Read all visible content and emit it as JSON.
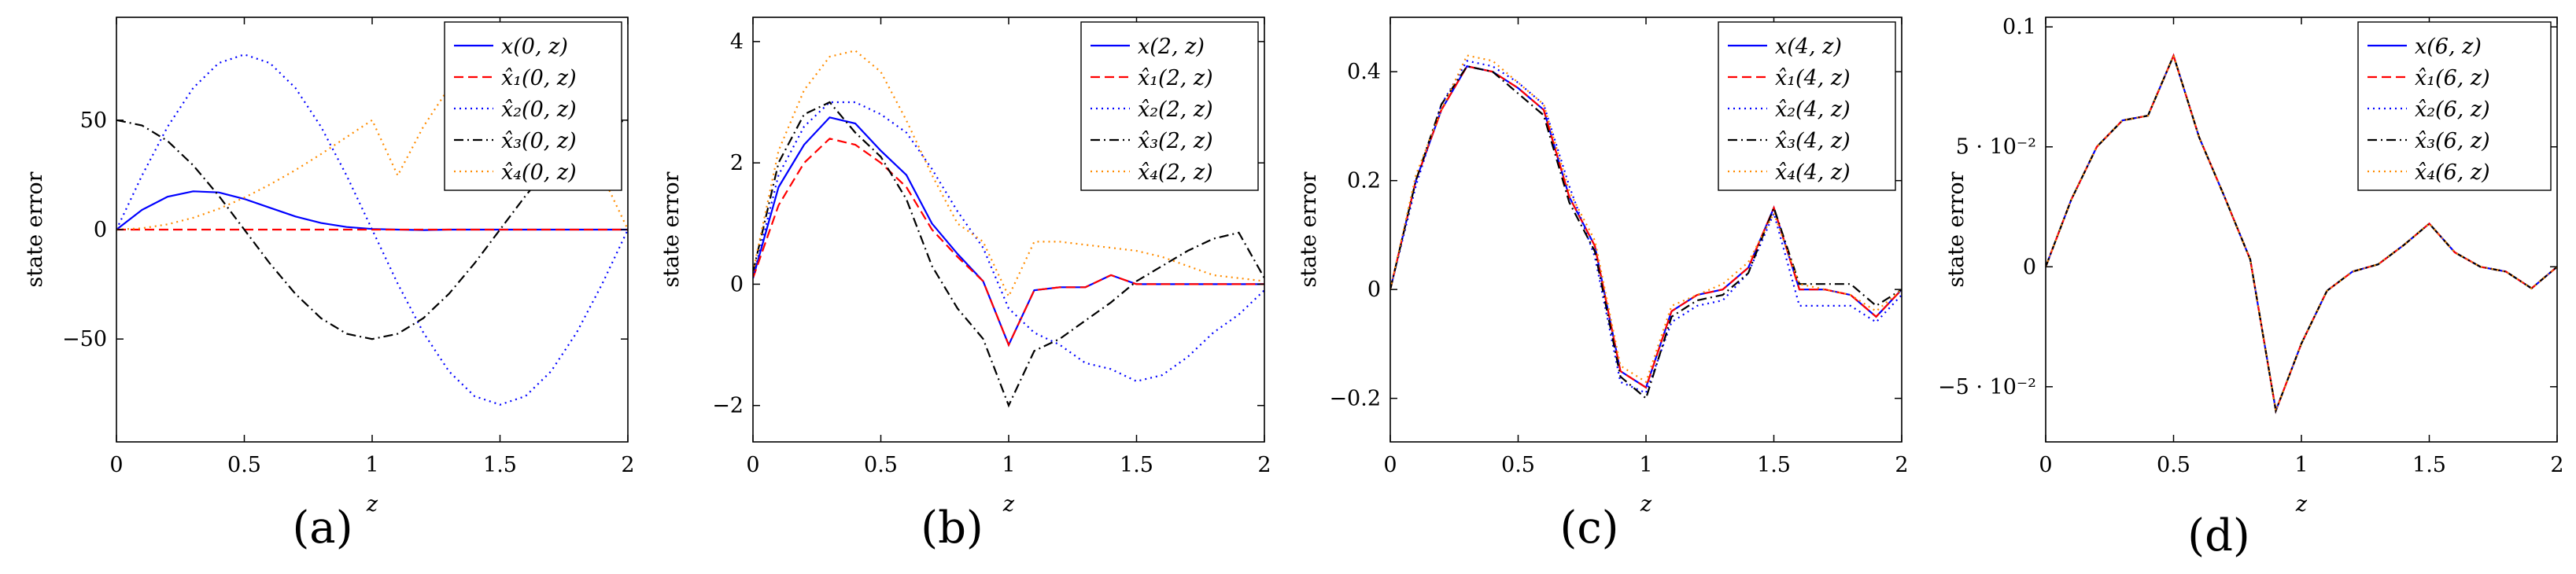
{
  "chart_data": [
    {
      "type": "line",
      "panel_label": "(a)",
      "xlabel": "z",
      "ylabel": "state error",
      "xlim": [
        0,
        2
      ],
      "ylim": [
        -97,
        97
      ],
      "xticks": [
        0,
        0.5,
        1,
        1.5,
        2
      ],
      "xtick_labels": [
        "0",
        "0.5",
        "1",
        "1.5",
        "2"
      ],
      "yticks": [
        -50,
        0,
        50
      ],
      "ytick_labels": [
        "−50",
        "0",
        "50"
      ],
      "legend": "top-right",
      "grid": false,
      "x": [
        0,
        0.1,
        0.2,
        0.3,
        0.4,
        0.5,
        0.6,
        0.7,
        0.8,
        0.9,
        1.0,
        1.1,
        1.2,
        1.3,
        1.4,
        1.5,
        1.6,
        1.7,
        1.8,
        1.9,
        2.0
      ],
      "series": [
        {
          "name": "x(0, z)",
          "color": "#0000ff",
          "dash": "solid",
          "values": [
            0,
            9,
            15,
            17.5,
            17,
            14,
            10,
            6,
            3,
            1.2,
            0.3,
            0,
            -0.2,
            0,
            0,
            0,
            0,
            0,
            0,
            0,
            0
          ]
        },
        {
          "name": "x̂₁(0, z)",
          "color": "#ff0000",
          "dash": "dashed",
          "values": [
            0,
            0,
            0,
            0,
            0,
            0,
            0,
            0,
            0,
            0,
            0,
            0,
            0,
            0,
            0,
            0,
            0,
            0,
            0,
            0,
            0
          ]
        },
        {
          "name": "x̂₂(0, z)",
          "color": "#0000ff",
          "dash": "dotted",
          "values": [
            0,
            24.7,
            47,
            64.7,
            76.1,
            80,
            76.1,
            64.7,
            47,
            24.7,
            0,
            -24.7,
            -47,
            -64.7,
            -76.1,
            -80,
            -76.1,
            -64.7,
            -47,
            -24.7,
            0
          ]
        },
        {
          "name": "x̂₃(0, z)",
          "color": "#000000",
          "dash": "dashdot",
          "values": [
            50,
            47.6,
            40.5,
            29.4,
            15.5,
            0,
            -15.5,
            -29.4,
            -40.5,
            -47.6,
            -50,
            -47.6,
            -40.5,
            -29.4,
            -15.5,
            0,
            15.5,
            29.4,
            40.5,
            47.6,
            50
          ]
        },
        {
          "name": "x̂₄(0, z)",
          "color": "#ff8c00",
          "dash": "dotted",
          "values": [
            0,
            0.6,
            2.4,
            5.4,
            9.5,
            14.6,
            20.6,
            27.2,
            34.5,
            42.3,
            50,
            24.7,
            47,
            64.7,
            76.1,
            80,
            76.1,
            64.7,
            47,
            24.7,
            0
          ]
        }
      ]
    },
    {
      "type": "line",
      "panel_label": "(b)",
      "xlabel": "z",
      "ylabel": "state error",
      "xlim": [
        0,
        2
      ],
      "ylim": [
        -2.6,
        4.4
      ],
      "xticks": [
        0,
        0.5,
        1,
        1.5,
        2
      ],
      "xtick_labels": [
        "0",
        "0.5",
        "1",
        "1.5",
        "2"
      ],
      "yticks": [
        -2,
        0,
        2,
        4
      ],
      "ytick_labels": [
        "−2",
        "0",
        "2",
        "4"
      ],
      "legend": "top-right",
      "grid": false,
      "x": [
        0,
        0.1,
        0.2,
        0.3,
        0.4,
        0.5,
        0.6,
        0.7,
        0.8,
        0.9,
        1.0,
        1.1,
        1.2,
        1.3,
        1.4,
        1.5,
        1.6,
        1.7,
        1.8,
        1.9,
        2.0
      ],
      "series": [
        {
          "name": "x(2, z)",
          "color": "#0000ff",
          "dash": "solid",
          "values": [
            0.1,
            1.6,
            2.3,
            2.75,
            2.65,
            2.2,
            1.8,
            1.0,
            0.5,
            0.05,
            -1.0,
            -0.1,
            -0.05,
            -0.05,
            0.15,
            0.0,
            0.0,
            0.0,
            0.0,
            0.0,
            0.0
          ]
        },
        {
          "name": "x̂₁(2, z)",
          "color": "#ff0000",
          "dash": "dashed",
          "values": [
            0.1,
            1.3,
            2.0,
            2.4,
            2.3,
            2.0,
            1.6,
            0.9,
            0.45,
            0.05,
            -1.0,
            -0.1,
            -0.05,
            -0.05,
            0.15,
            0.0,
            0.0,
            0.0,
            0.0,
            0.0,
            0.0
          ]
        },
        {
          "name": "x̂₂(2, z)",
          "color": "#0000ff",
          "dash": "dotted",
          "values": [
            0.1,
            1.8,
            2.6,
            3.0,
            3.0,
            2.8,
            2.5,
            1.9,
            1.2,
            0.6,
            -0.4,
            -0.8,
            -1.0,
            -1.3,
            -1.4,
            -1.6,
            -1.5,
            -1.2,
            -0.8,
            -0.5,
            -0.1
          ]
        },
        {
          "name": "x̂₃(2, z)",
          "color": "#000000",
          "dash": "dashdot",
          "values": [
            0.2,
            2.0,
            2.8,
            3.0,
            2.5,
            2.1,
            1.4,
            0.3,
            -0.4,
            -0.9,
            -2.0,
            -1.1,
            -0.9,
            -0.6,
            -0.3,
            0.05,
            0.3,
            0.55,
            0.75,
            0.85,
            0.1
          ]
        },
        {
          "name": "x̂₄(2, z)",
          "color": "#ff8c00",
          "dash": "dotted",
          "values": [
            0.2,
            2.2,
            3.2,
            3.75,
            3.85,
            3.5,
            2.7,
            1.8,
            1.0,
            0.7,
            -0.2,
            0.7,
            0.7,
            0.65,
            0.6,
            0.55,
            0.45,
            0.3,
            0.15,
            0.1,
            0.05
          ]
        }
      ]
    },
    {
      "type": "line",
      "panel_label": "(c)",
      "xlabel": "z",
      "ylabel": "state error",
      "xlim": [
        0,
        2
      ],
      "ylim": [
        -0.28,
        0.5
      ],
      "xticks": [
        0,
        0.5,
        1,
        1.5,
        2
      ],
      "xtick_labels": [
        "0",
        "0.5",
        "1",
        "1.5",
        "2"
      ],
      "yticks": [
        -0.2,
        0,
        0.2,
        0.4
      ],
      "ytick_labels": [
        "−0.2",
        "0",
        "0.2",
        "0.4"
      ],
      "legend": "top-right",
      "grid": false,
      "x": [
        0,
        0.1,
        0.2,
        0.3,
        0.4,
        0.5,
        0.6,
        0.7,
        0.8,
        0.9,
        1.0,
        1.1,
        1.2,
        1.3,
        1.4,
        1.5,
        1.6,
        1.7,
        1.8,
        1.9,
        2.0
      ],
      "series": [
        {
          "name": "x(4, z)",
          "color": "#0000ff",
          "dash": "solid",
          "values": [
            0.0,
            0.2,
            0.33,
            0.41,
            0.4,
            0.37,
            0.33,
            0.17,
            0.08,
            -0.15,
            -0.18,
            -0.04,
            -0.01,
            0.0,
            0.04,
            0.15,
            0.0,
            0.0,
            -0.01,
            -0.05,
            0.0
          ]
        },
        {
          "name": "x̂₁(4, z)",
          "color": "#ff0000",
          "dash": "dashed",
          "values": [
            0.0,
            0.2,
            0.33,
            0.41,
            0.4,
            0.37,
            0.33,
            0.17,
            0.08,
            -0.15,
            -0.18,
            -0.04,
            -0.01,
            0.0,
            0.04,
            0.15,
            0.0,
            0.0,
            -0.01,
            -0.05,
            0.0
          ]
        },
        {
          "name": "x̂₂(4, z)",
          "color": "#0000ff",
          "dash": "dotted",
          "values": [
            0.0,
            0.19,
            0.34,
            0.42,
            0.41,
            0.38,
            0.34,
            0.19,
            0.06,
            -0.17,
            -0.19,
            -0.06,
            -0.03,
            -0.02,
            0.03,
            0.14,
            -0.03,
            -0.03,
            -0.03,
            -0.06,
            -0.01
          ]
        },
        {
          "name": "x̂₃(4, z)",
          "color": "#000000",
          "dash": "dashdot",
          "values": [
            0.0,
            0.2,
            0.34,
            0.41,
            0.4,
            0.36,
            0.32,
            0.16,
            0.07,
            -0.16,
            -0.2,
            -0.05,
            -0.02,
            -0.01,
            0.03,
            0.15,
            0.01,
            0.01,
            0.01,
            -0.03,
            0.0
          ]
        },
        {
          "name": "x̂₄(4, z)",
          "color": "#ff8c00",
          "dash": "dotted",
          "values": [
            0.0,
            0.21,
            0.33,
            0.43,
            0.42,
            0.38,
            0.34,
            0.18,
            0.09,
            -0.14,
            -0.17,
            -0.03,
            -0.01,
            0.01,
            0.05,
            0.14,
            0.01,
            0.0,
            -0.01,
            -0.04,
            0.0
          ]
        }
      ]
    },
    {
      "type": "line",
      "panel_label": "(d)",
      "xlabel": "z",
      "ylabel": "state error",
      "xlim": [
        0,
        2
      ],
      "ylim": [
        -0.073,
        0.104
      ],
      "xticks": [
        0,
        0.5,
        1,
        1.5,
        2
      ],
      "xtick_labels": [
        "0",
        "0.5",
        "1",
        "1.5",
        "2"
      ],
      "yticks": [
        -0.05,
        0,
        0.05,
        0.1
      ],
      "ytick_labels": [
        "−5 · 10⁻²",
        "0",
        "5 · 10⁻²",
        "0.1"
      ],
      "legend": "top-right",
      "grid": false,
      "x": [
        0,
        0.1,
        0.2,
        0.3,
        0.4,
        0.5,
        0.6,
        0.7,
        0.8,
        0.9,
        1.0,
        1.1,
        1.2,
        1.3,
        1.4,
        1.5,
        1.6,
        1.7,
        1.8,
        1.9,
        2.0
      ],
      "series": [
        {
          "name": "x(6, z)",
          "color": "#0000ff",
          "dash": "solid",
          "values": [
            0.0,
            0.028,
            0.05,
            0.061,
            0.063,
            0.088,
            0.054,
            0.029,
            0.003,
            -0.06,
            -0.032,
            -0.01,
            -0.002,
            0.001,
            0.009,
            0.018,
            0.006,
            0.0,
            -0.002,
            -0.009,
            0.0
          ]
        },
        {
          "name": "x̂₁(6, z)",
          "color": "#ff0000",
          "dash": "dashed",
          "values": [
            0.0,
            0.028,
            0.05,
            0.061,
            0.063,
            0.088,
            0.054,
            0.029,
            0.003,
            -0.06,
            -0.032,
            -0.01,
            -0.002,
            0.001,
            0.009,
            0.018,
            0.006,
            0.0,
            -0.002,
            -0.009,
            0.0
          ]
        },
        {
          "name": "x̂₂(6, z)",
          "color": "#0000ff",
          "dash": "dotted",
          "values": [
            0.0,
            0.028,
            0.05,
            0.061,
            0.063,
            0.088,
            0.054,
            0.029,
            0.003,
            -0.06,
            -0.032,
            -0.01,
            -0.002,
            0.001,
            0.009,
            0.018,
            0.006,
            0.0,
            -0.002,
            -0.009,
            0.0
          ]
        },
        {
          "name": "x̂₃(6, z)",
          "color": "#000000",
          "dash": "dashdot",
          "values": [
            0.0,
            0.028,
            0.05,
            0.061,
            0.063,
            0.088,
            0.054,
            0.029,
            0.003,
            -0.06,
            -0.032,
            -0.01,
            -0.002,
            0.001,
            0.009,
            0.018,
            0.006,
            0.0,
            -0.002,
            -0.009,
            0.0
          ]
        },
        {
          "name": "x̂₄(6, z)",
          "color": "#ff8c00",
          "dash": "dotted",
          "values": [
            0.0,
            0.028,
            0.05,
            0.061,
            0.063,
            0.088,
            0.054,
            0.029,
            0.003,
            -0.06,
            -0.032,
            -0.01,
            -0.002,
            0.001,
            0.009,
            0.018,
            0.006,
            0.0,
            -0.002,
            -0.009,
            0.0
          ]
        }
      ]
    }
  ]
}
